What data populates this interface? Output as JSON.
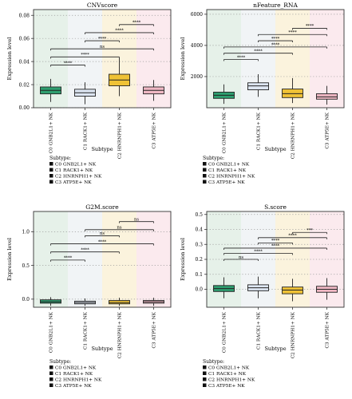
{
  "chart_data": [
    {
      "type": "box",
      "title": "CNVscore",
      "xlabel": "Subtype",
      "ylabel": "Expression level",
      "categories": [
        "C0 GNB2L1+ NK",
        "C1 RACK1+ NK",
        "C2 HNRNPH1+ NK",
        "C3 ATP5E+ NK"
      ],
      "ylim": [
        0,
        0.085
      ],
      "yticks": [
        0,
        0.02,
        0.04,
        0.06,
        0.08
      ],
      "ytick_labels": [
        "0.00",
        "0.02",
        "0.04",
        "0.06",
        "0.08"
      ],
      "boxes": [
        {
          "whisker_low": 0.005,
          "q1": 0.012,
          "median": 0.015,
          "q3": 0.018,
          "whisker_high": 0.025
        },
        {
          "whisker_low": 0.003,
          "q1": 0.01,
          "median": 0.013,
          "q3": 0.016,
          "whisker_high": 0.022
        },
        {
          "whisker_low": 0.01,
          "q1": 0.019,
          "median": 0.024,
          "q3": 0.029,
          "whisker_high": 0.043
        },
        {
          "whisker_low": 0.006,
          "q1": 0.012,
          "median": 0.015,
          "q3": 0.018,
          "whisker_high": 0.024
        }
      ],
      "comparisons": [
        {
          "from": 0,
          "to": 1,
          "y": 0.037,
          "label": "****"
        },
        {
          "from": 0,
          "to": 2,
          "y": 0.044,
          "label": "****"
        },
        {
          "from": 0,
          "to": 3,
          "y": 0.051,
          "label": "ns"
        },
        {
          "from": 1,
          "to": 2,
          "y": 0.058,
          "label": "****"
        },
        {
          "from": 1,
          "to": 3,
          "y": 0.065,
          "label": "****"
        },
        {
          "from": 2,
          "to": 3,
          "y": 0.072,
          "label": "****"
        }
      ],
      "grid": true,
      "legend": {
        "title": "Subtype:",
        "entries": [
          "C0 GNB2L1+ NK",
          "C1 RACK1+ NK",
          "C2 HNRNPH1+ NK",
          "C3 ATP5E+ NK"
        ]
      }
    },
    {
      "type": "box",
      "title": "nFeature_RNA",
      "xlabel": "Subtype",
      "ylabel": "Expression level",
      "categories": [
        "C0 GNB2L1+ NK",
        "C1 RACK1+ NK",
        "C2 HNRNPH1+ NK",
        "C3 ATP5E+ NK"
      ],
      "ylim": [
        0,
        6300
      ],
      "yticks": [
        2000,
        4000,
        6000
      ],
      "ytick_labels": [
        "2000",
        "4000",
        "6000"
      ],
      "boxes": [
        {
          "whisker_low": 250,
          "q1": 600,
          "median": 800,
          "q3": 1000,
          "whisker_high": 1500
        },
        {
          "whisker_low": 700,
          "q1": 1150,
          "median": 1400,
          "q3": 1600,
          "whisker_high": 2150
        },
        {
          "whisker_low": 300,
          "q1": 650,
          "median": 900,
          "q3": 1200,
          "whisker_high": 1900
        },
        {
          "whisker_low": 200,
          "q1": 550,
          "median": 700,
          "q3": 900,
          "whisker_high": 1400
        }
      ],
      "comparisons": [
        {
          "from": 0,
          "to": 1,
          "y": 3100,
          "label": "****"
        },
        {
          "from": 0,
          "to": 2,
          "y": 3500,
          "label": "****"
        },
        {
          "from": 0,
          "to": 3,
          "y": 3900,
          "label": "****"
        },
        {
          "from": 1,
          "to": 2,
          "y": 4300,
          "label": "****"
        },
        {
          "from": 1,
          "to": 3,
          "y": 4700,
          "label": "****"
        },
        {
          "from": 2,
          "to": 3,
          "y": 5100,
          "label": "****"
        }
      ],
      "grid": true,
      "legend": {
        "title": "Subtype:",
        "entries": [
          "C0 GNB2L1+ NK",
          "C1 RACK1+ NK",
          "C2 HNRNPH1+ NK",
          "C3 ATP5E+ NK"
        ]
      }
    },
    {
      "type": "box",
      "title": "G2M.score",
      "xlabel": "Subtype",
      "ylabel": "Expression level",
      "categories": [
        "C0 GNB2L1+ NK",
        "C1 RACK1+ NK",
        "C2 HNRNPH1+ NK",
        "C3 ATP5E+ NK"
      ],
      "ylim": [
        -0.12,
        1.3
      ],
      "yticks": [
        0.0,
        0.5,
        1.0
      ],
      "ytick_labels": [
        "0.0",
        "0.5",
        "1.0"
      ],
      "boxes": [
        {
          "whisker_low": -0.1,
          "q1": -0.06,
          "median": -0.04,
          "q3": -0.01,
          "whisker_high": 0.03
        },
        {
          "whisker_low": -0.1,
          "q1": -0.07,
          "median": -0.05,
          "q3": -0.03,
          "whisker_high": 0.01
        },
        {
          "whisker_low": -0.1,
          "q1": -0.07,
          "median": -0.05,
          "q3": -0.02,
          "whisker_high": 0.02
        },
        {
          "whisker_low": -0.1,
          "q1": -0.06,
          "median": -0.04,
          "q3": -0.02,
          "whisker_high": 0.02
        }
      ],
      "comparisons": [
        {
          "from": 0,
          "to": 1,
          "y": 0.58,
          "label": "****"
        },
        {
          "from": 0,
          "to": 2,
          "y": 0.7,
          "label": "****"
        },
        {
          "from": 0,
          "to": 3,
          "y": 0.82,
          "label": "****"
        },
        {
          "from": 1,
          "to": 2,
          "y": 0.94,
          "label": "ns"
        },
        {
          "from": 1,
          "to": 3,
          "y": 1.03,
          "label": "ns"
        },
        {
          "from": 2,
          "to": 3,
          "y": 1.15,
          "label": "ns"
        }
      ],
      "grid": true,
      "legend": {
        "title": "Subtype:",
        "entries": [
          "C0 GNB2L1+ NK",
          "C1 RACK1+ NK",
          "C2 HNRNPH1+ NK",
          "C3 ATP5E+ NK"
        ]
      }
    },
    {
      "type": "box",
      "title": "S.score",
      "xlabel": "Subtype",
      "ylabel": "Expression level",
      "categories": [
        "C0 GNB2L1+ NK",
        "C1 RACK1+ NK",
        "C2 HNRNPH1+ NK",
        "C3 ATP5E+ NK"
      ],
      "ylim": [
        -0.12,
        0.52
      ],
      "yticks": [
        0.0,
        0.1,
        0.2,
        0.3,
        0.4,
        0.5
      ],
      "ytick_labels": [
        "0.0",
        "0.1",
        "0.2",
        "0.3",
        "0.4",
        "0.5"
      ],
      "boxes": [
        {
          "whisker_low": -0.06,
          "q1": -0.015,
          "median": 0.005,
          "q3": 0.025,
          "whisker_high": 0.08
        },
        {
          "whisker_low": -0.06,
          "q1": -0.01,
          "median": 0.01,
          "q3": 0.03,
          "whisker_high": 0.085
        },
        {
          "whisker_low": -0.08,
          "q1": -0.03,
          "median": -0.005,
          "q3": 0.015,
          "whisker_high": 0.07
        },
        {
          "whisker_low": -0.07,
          "q1": -0.02,
          "median": 0.0,
          "q3": 0.02,
          "whisker_high": 0.075
        }
      ],
      "comparisons": [
        {
          "from": 0,
          "to": 1,
          "y": 0.2,
          "label": "ns"
        },
        {
          "from": 0,
          "to": 2,
          "y": 0.24,
          "label": "****"
        },
        {
          "from": 0,
          "to": 3,
          "y": 0.275,
          "label": "****"
        },
        {
          "from": 1,
          "to": 2,
          "y": 0.31,
          "label": "****"
        },
        {
          "from": 1,
          "to": 3,
          "y": 0.345,
          "label": "****"
        },
        {
          "from": 2,
          "to": 3,
          "y": 0.38,
          "label": "***"
        }
      ],
      "grid": true,
      "legend": {
        "title": "Subtype:",
        "entries": [
          "C0 GNB2L1+ NK",
          "C1 RACK1+ NK",
          "C2 HNRNPH1+ NK",
          "C3 ATP5E+ NK"
        ]
      }
    }
  ],
  "colors": {
    "box_fills": [
      "#2e9e6f",
      "#dde6f2",
      "#efc236",
      "#f0b8c4"
    ],
    "panel_bands": [
      "#e6f1e9",
      "#f1f4f6",
      "#fbf3dd",
      "#fbeaee"
    ],
    "legend_marker": "#111111",
    "axis": "#333333",
    "grid": "#9a9a9a"
  }
}
